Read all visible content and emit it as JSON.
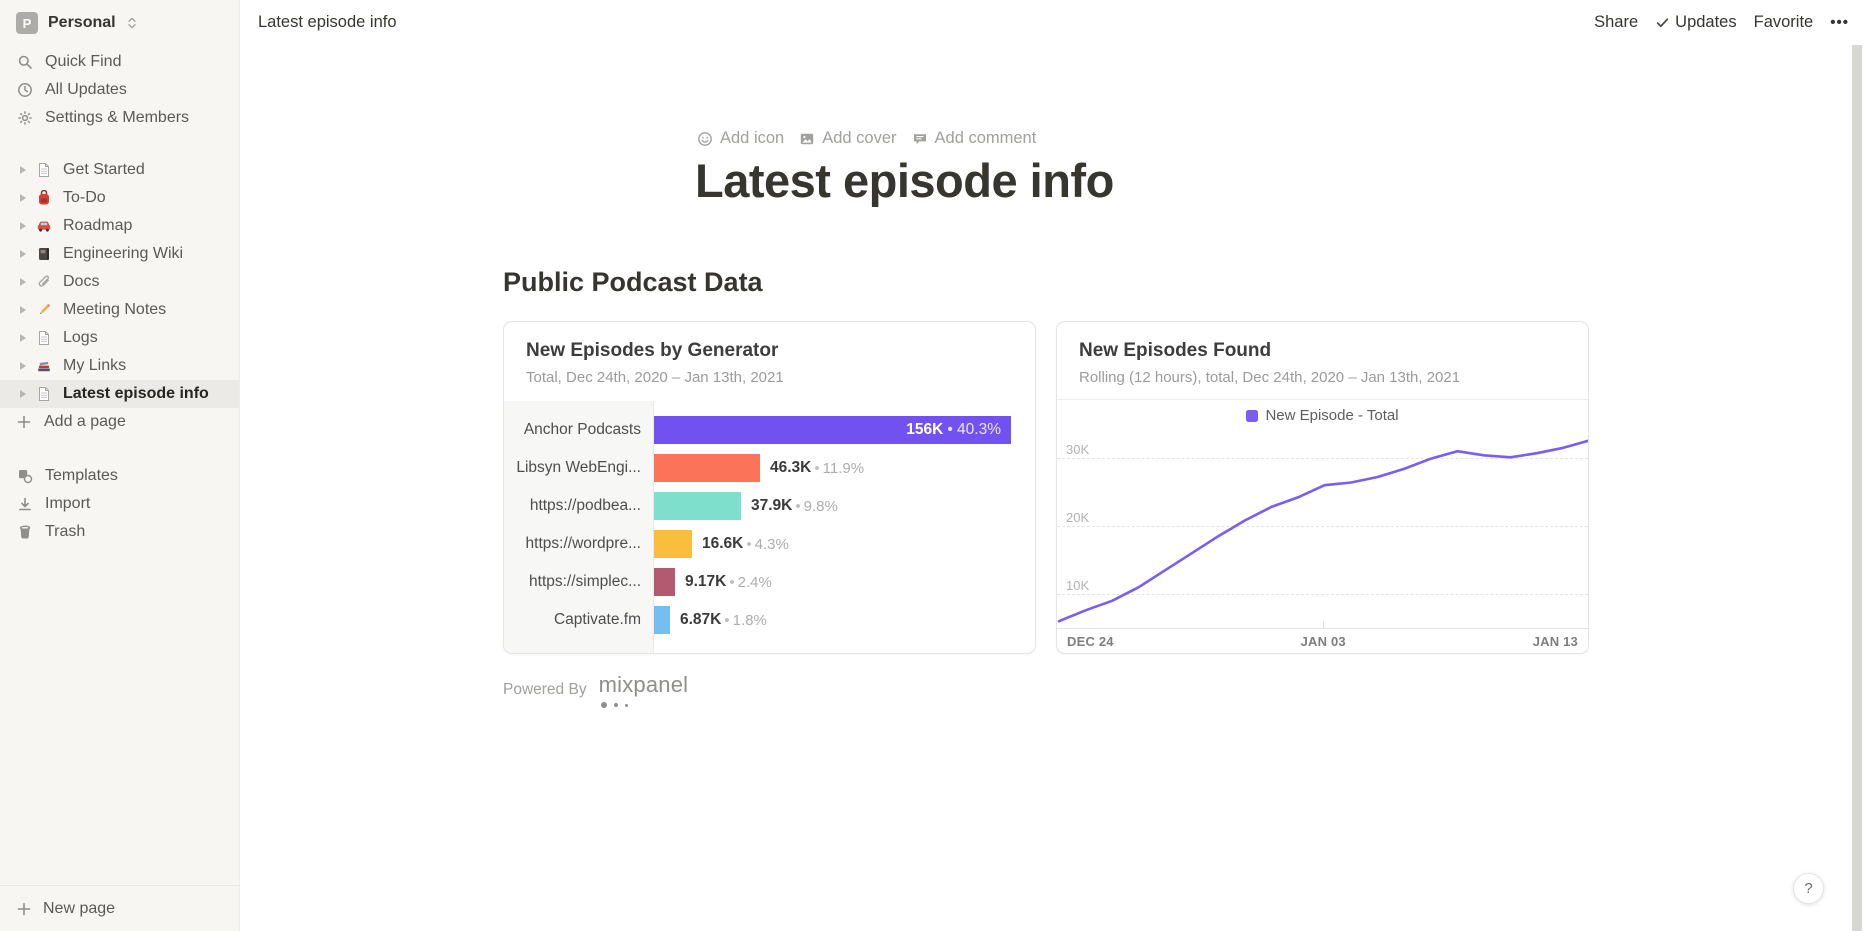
{
  "workspace": {
    "name": "Personal",
    "initial": "P"
  },
  "sidebar": {
    "top_items": [
      {
        "icon": "search",
        "label": "Quick Find"
      },
      {
        "icon": "clock",
        "label": "All Updates"
      },
      {
        "icon": "gear",
        "label": "Settings & Members"
      }
    ],
    "pages": [
      {
        "icon": "page",
        "label": "Get Started"
      },
      {
        "icon": "backpack",
        "label": "To-Do"
      },
      {
        "icon": "car",
        "label": "Roadmap"
      },
      {
        "icon": "notebook",
        "label": "Engineering Wiki"
      },
      {
        "icon": "paperclip",
        "label": "Docs"
      },
      {
        "icon": "pencil",
        "label": "Meeting Notes"
      },
      {
        "icon": "page",
        "label": "Logs"
      },
      {
        "icon": "books",
        "label": "My Links"
      },
      {
        "icon": "page",
        "label": "Latest episode info",
        "active": true
      }
    ],
    "add_page_label": "Add a page",
    "tools": [
      {
        "icon": "templates",
        "label": "Templates"
      },
      {
        "icon": "import",
        "label": "Import"
      },
      {
        "icon": "trash",
        "label": "Trash"
      }
    ],
    "new_page_label": "New page"
  },
  "topbar": {
    "breadcrumb": "Latest episode info",
    "share": "Share",
    "updates": "Updates",
    "favorite": "Favorite",
    "more": "•••"
  },
  "page": {
    "add_icon": "Add icon",
    "add_cover": "Add cover",
    "add_comment": "Add comment",
    "title": "Latest episode info",
    "section_heading": "Public Podcast Data",
    "powered_by": "Powered By",
    "powered_brand": "mixpanel"
  },
  "chart_data": [
    {
      "type": "bar",
      "title": "New Episodes by Generator",
      "subtitle": "Total, Dec 24th, 2020 – Jan 13th, 2021",
      "categories": [
        "Anchor Podcasts",
        "Libsyn WebEngi...",
        "https://podbea...",
        "https://wordpre...",
        "https://simplec...",
        "Captivate.fm"
      ],
      "values": [
        156000,
        46300,
        37900,
        16600,
        9170,
        6870
      ],
      "value_labels": [
        "156K",
        "46.3K",
        "37.9K",
        "16.6K",
        "9.17K",
        "6.87K"
      ],
      "percent_labels": [
        "40.3%",
        "11.9%",
        "9.8%",
        "4.3%",
        "2.4%",
        "1.8%"
      ],
      "separator": "•",
      "colors": [
        "#7152F0",
        "#FB7358",
        "#7EDFCD",
        "#F9BE3D",
        "#B35A71",
        "#75BEF2"
      ],
      "orientation": "horizontal"
    },
    {
      "type": "line",
      "title": "New Episodes Found",
      "subtitle": "Rolling (12 hours), total, Dec 24th, 2020 – Jan 13th, 2021",
      "legend": "New Episode - Total",
      "color": "#7B5CF4",
      "x_ticks": [
        "DEC 24",
        "JAN 03",
        "JAN 13"
      ],
      "y_ticks": [
        "10K",
        "20K",
        "30K"
      ],
      "y_gridlines": [
        10000,
        20000,
        30000
      ],
      "ylim": [
        4850,
        35300
      ],
      "grid": "dashed-horizontal",
      "legend_position": "top-center",
      "values": [
        6000,
        7600,
        9000,
        11000,
        13500,
        16000,
        18500,
        20800,
        22800,
        24200,
        26000,
        26400,
        27200,
        28400,
        29900,
        31000,
        30400,
        30100,
        30700,
        31500,
        32600
      ]
    }
  ],
  "help_label": "?"
}
